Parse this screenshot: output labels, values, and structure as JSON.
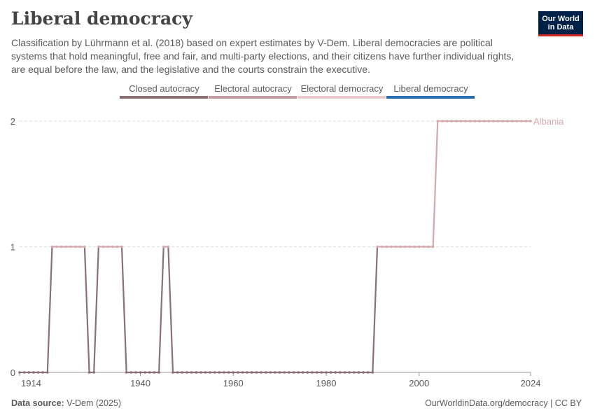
{
  "header": {
    "title": "Liberal democracy",
    "subtitle": "Classification by Lührmann et al. (2018) based on expert estimates by V-Dem. Liberal democracies are political systems that hold meaningful, free and fair, and multi-party elections, and their citizens have further individual rights, are equal before the law, and the legislative and the courts constrain the executive."
  },
  "logo": {
    "line1": "Our World",
    "line2": "in Data"
  },
  "footer": {
    "source_label": "Data source:",
    "source_value": "V-Dem (2025)",
    "credit": "OurWorldinData.org/democracy | CC BY"
  },
  "colors": {
    "closed_autocracy": "#8b6f75",
    "electoral_autocracy": "#c49ba2",
    "electoral_democracy": "#ecc9ce",
    "liberal_democracy": "#2c6eb0",
    "series": "#d4a9ae",
    "grid": "#dddddd",
    "text": "#5b5b5b"
  },
  "chart_data": {
    "type": "line",
    "title": "Liberal democracy",
    "xlabel": "",
    "ylabel": "",
    "xlim": [
      1914,
      2024
    ],
    "ylim": [
      0,
      2
    ],
    "x_ticks": [
      1914,
      1940,
      1960,
      1980,
      2000,
      2024
    ],
    "y_ticks": [
      0,
      1,
      2
    ],
    "grid": "horizontal dashed",
    "legend": {
      "placement": "top-center",
      "entries": [
        "Closed autocracy",
        "Electoral autocracy",
        "Electoral democracy",
        "Liberal democracy"
      ]
    },
    "series": [
      {
        "name": "Albania",
        "segments": [
          {
            "start": 1914,
            "end": 1920,
            "value": 0
          },
          {
            "start": 1921,
            "end": 1928,
            "value": 1
          },
          {
            "start": 1929,
            "end": 1930,
            "value": 0
          },
          {
            "start": 1931,
            "end": 1936,
            "value": 1
          },
          {
            "start": 1937,
            "end": 1944,
            "value": 0
          },
          {
            "start": 1945,
            "end": 1946,
            "value": 1
          },
          {
            "start": 1947,
            "end": 1990,
            "value": 0
          },
          {
            "start": 1991,
            "end": 2003,
            "value": 1
          },
          {
            "start": 2004,
            "end": 2024,
            "value": 2
          }
        ]
      }
    ]
  }
}
